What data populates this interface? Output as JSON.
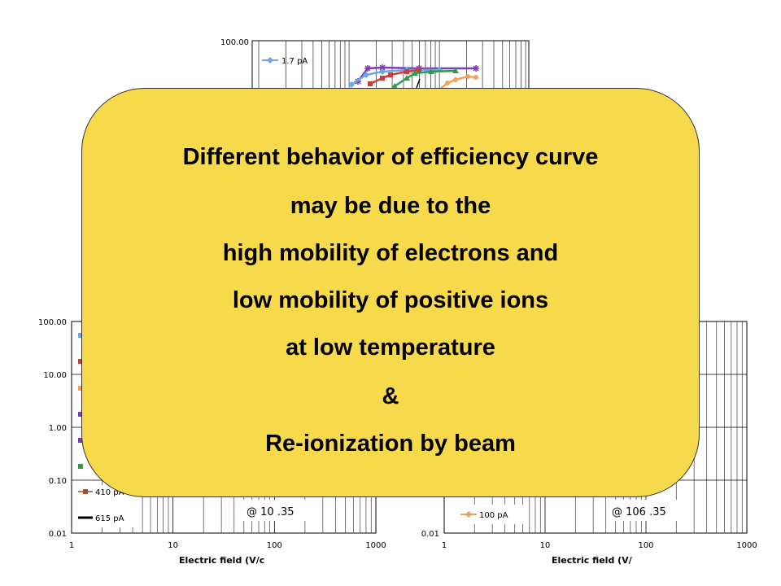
{
  "callout": {
    "lines": [
      "Different behavior of efficiency curve",
      "may be due to  the",
      "high mobility of electrons and",
      "low mobility of positive ions",
      "at low temperature",
      "&",
      "Re-ionization by beam"
    ],
    "color": "#f7d94c"
  },
  "chart_data": [
    {
      "type": "line",
      "panel": "top",
      "yscale": "log",
      "y_tick_labels": [
        "100.00"
      ],
      "series": [
        {
          "name": "1.7 pA",
          "color": "#6aa7e8",
          "marker": "diamond"
        },
        {
          "name": "",
          "color": "#7b3fb5",
          "marker": "asterisk"
        },
        {
          "name": "",
          "color": "#d03a3a",
          "marker": "square"
        },
        {
          "name": "",
          "color": "#2f9a45",
          "marker": "triangle"
        },
        {
          "name": "",
          "color": "#f0a05a",
          "marker": "circle"
        }
      ]
    },
    {
      "type": "line",
      "panel": "bottom-left",
      "xscale": "log",
      "yscale": "log",
      "xlim": [
        1,
        1000
      ],
      "ylim": [
        0.01,
        100
      ],
      "x_tick_labels": [
        "1",
        "10",
        "100",
        "1000"
      ],
      "y_tick_labels": [
        "100.00",
        "10.00",
        "1.00",
        "0.10",
        "0.01"
      ],
      "xlabel": "Electric field (V/c",
      "annotation": "@ 10 .35",
      "series": [
        {
          "name": "410 pA",
          "color": "#a0522d",
          "marker": "square"
        },
        {
          "name": "615 pA",
          "color": "#000000",
          "marker": "none"
        }
      ]
    },
    {
      "type": "line",
      "panel": "bottom-right",
      "xscale": "log",
      "yscale": "log",
      "xlim": [
        1,
        1000
      ],
      "ylim": [
        0.01,
        100
      ],
      "x_tick_labels": [
        "1",
        "10",
        "100",
        "1000"
      ],
      "y_tick_labels": [
        "0.01"
      ],
      "xlabel": "Electric field (V/",
      "annotation": "@ 106 .35",
      "series": [
        {
          "name": "100 pA",
          "color": "#f0a05a",
          "marker": "diamond"
        }
      ]
    }
  ]
}
